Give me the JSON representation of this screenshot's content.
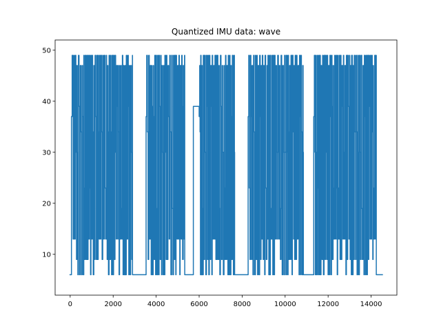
{
  "chart_data": {
    "type": "line",
    "title": "Quantized IMU data: wave",
    "xlabel": "",
    "ylabel": "",
    "xlim": [
      -700,
      15200
    ],
    "ylim": [
      2,
      52
    ],
    "xticks": [
      0,
      2000,
      4000,
      6000,
      8000,
      10000,
      12000,
      14000
    ],
    "xtick_labels": [
      "0",
      "2000",
      "4000",
      "6000",
      "8000",
      "10000",
      "12000",
      "14000"
    ],
    "yticks": [
      10,
      20,
      30,
      40,
      50
    ],
    "ytick_labels": [
      "10",
      "20",
      "30",
      "40",
      "50"
    ],
    "grid": false,
    "series": [
      {
        "color": "#1f77b4",
        "active_segments": [
          [
            60,
            2900
          ],
          [
            3530,
            5330
          ],
          [
            6000,
            7650
          ],
          [
            8280,
            10850
          ],
          [
            11330,
            14240
          ]
        ],
        "idle_segments": [
          {
            "x": [
              -30,
              60
            ],
            "y": 6
          },
          {
            "x": [
              2900,
              3530
            ],
            "y": 6
          },
          {
            "x": [
              5330,
              5730
            ],
            "y": 6
          },
          {
            "x": [
              5730,
              5970
            ],
            "y": 39
          },
          {
            "x": [
              7650,
              8280
            ],
            "y": 6
          },
          {
            "x": [
              10850,
              11330
            ],
            "y": 6
          },
          {
            "x": [
              14240,
              14550
            ],
            "y": 6
          }
        ],
        "levels": [
          4,
          6,
          9,
          13,
          19,
          23,
          30,
          34,
          37,
          39,
          47,
          49
        ],
        "approx_cycle_length": 140
      }
    ]
  }
}
